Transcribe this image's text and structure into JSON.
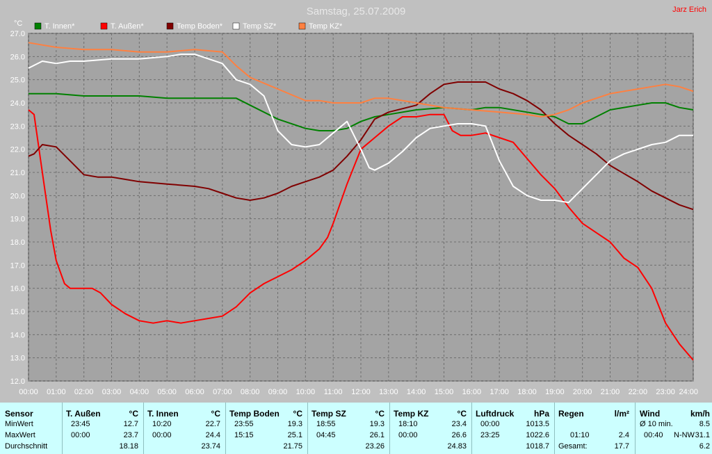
{
  "title": "Samstag, 25.07.2009",
  "author": "Jarz Erich",
  "chart_data": {
    "type": "line",
    "ylabel": "°C",
    "ylim": [
      12.0,
      27.0
    ],
    "yticks": [
      "12.0",
      "13.0",
      "14.0",
      "15.0",
      "16.0",
      "17.0",
      "18.0",
      "19.0",
      "20.0",
      "21.0",
      "22.0",
      "23.0",
      "24.0",
      "25.0",
      "26.0",
      "27.0"
    ],
    "xlim": [
      0,
      24
    ],
    "xticks": [
      "00:00",
      "01:00",
      "02:00",
      "03:00",
      "04:00",
      "05:00",
      "06:00",
      "07:00",
      "08:00",
      "09:00",
      "10:00",
      "11:00",
      "12:00",
      "13:00",
      "14:00",
      "15:00",
      "16:00",
      "17:00",
      "18:00",
      "19:00",
      "20:00",
      "21:00",
      "22:00",
      "23:00",
      "24:00"
    ],
    "grid": true,
    "legend_position": "top-left",
    "series": [
      {
        "name": "T. Innen*",
        "color": "#008000",
        "x": [
          0,
          1,
          2,
          3,
          4,
          5,
          6,
          7,
          7.5,
          8,
          9,
          10,
          10.5,
          11,
          11.5,
          12,
          12.5,
          13,
          14,
          15,
          16,
          16.5,
          17,
          18,
          18.5,
          19,
          19.5,
          20,
          20.5,
          21,
          22,
          22.5,
          23,
          23.5,
          24
        ],
        "y": [
          24.4,
          24.4,
          24.3,
          24.3,
          24.3,
          24.2,
          24.2,
          24.2,
          24.2,
          23.9,
          23.3,
          22.9,
          22.8,
          22.8,
          22.9,
          23.2,
          23.4,
          23.5,
          23.7,
          23.8,
          23.7,
          23.8,
          23.8,
          23.6,
          23.5,
          23.4,
          23.1,
          23.1,
          23.4,
          23.7,
          23.9,
          24.0,
          24.0,
          23.8,
          23.7
        ]
      },
      {
        "name": "T. Außen*",
        "color": "#ff0000",
        "x": [
          0,
          0.2,
          0.5,
          0.8,
          1,
          1.3,
          1.5,
          2,
          2.3,
          2.6,
          3,
          3.5,
          4,
          4.5,
          5,
          5.5,
          6,
          6.5,
          7,
          7.5,
          8,
          8.5,
          9,
          9.5,
          10,
          10.3,
          10.5,
          10.8,
          11,
          11.5,
          12,
          12.5,
          13,
          13.5,
          14,
          14.5,
          15,
          15.3,
          15.6,
          16,
          16.5,
          17,
          17.5,
          18,
          18.5,
          19,
          19.5,
          20,
          20.5,
          21,
          21.5,
          22,
          22.5,
          23,
          23.5,
          24
        ],
        "y": [
          23.7,
          23.5,
          21.0,
          18.5,
          17.2,
          16.2,
          16.0,
          16.0,
          16.0,
          15.8,
          15.3,
          14.9,
          14.6,
          14.5,
          14.6,
          14.5,
          14.6,
          14.7,
          14.8,
          15.2,
          15.8,
          16.2,
          16.5,
          16.8,
          17.2,
          17.5,
          17.7,
          18.2,
          18.8,
          20.5,
          22.0,
          22.5,
          23.0,
          23.4,
          23.4,
          23.5,
          23.5,
          22.8,
          22.6,
          22.6,
          22.7,
          22.5,
          22.3,
          21.6,
          20.9,
          20.3,
          19.5,
          18.8,
          18.4,
          18.0,
          17.3,
          16.9,
          16.0,
          14.5,
          13.6,
          12.9
        ]
      },
      {
        "name": "Temp Boden*",
        "color": "#800000",
        "x": [
          0,
          0.2,
          0.5,
          1,
          1.5,
          2,
          2.5,
          3,
          3.5,
          4,
          5,
          6,
          6.5,
          7,
          7.5,
          8,
          8.5,
          9,
          9.5,
          10,
          10.5,
          11,
          11.5,
          12,
          12.5,
          13,
          14,
          14.5,
          15,
          15.5,
          16,
          16.5,
          17,
          17.5,
          18,
          18.5,
          19,
          19.5,
          20,
          20.5,
          21,
          22,
          22.5,
          23,
          23.5,
          24
        ],
        "y": [
          21.7,
          21.8,
          22.2,
          22.1,
          21.5,
          20.9,
          20.8,
          20.8,
          20.7,
          20.6,
          20.5,
          20.4,
          20.3,
          20.1,
          19.9,
          19.8,
          19.9,
          20.1,
          20.4,
          20.6,
          20.8,
          21.1,
          21.7,
          22.4,
          23.3,
          23.6,
          23.9,
          24.4,
          24.8,
          24.9,
          24.9,
          24.9,
          24.6,
          24.4,
          24.1,
          23.7,
          23.1,
          22.6,
          22.2,
          21.8,
          21.3,
          20.6,
          20.2,
          19.9,
          19.6,
          19.4
        ]
      },
      {
        "name": "Temp SZ*",
        "color": "#ffffff",
        "x": [
          0,
          0.5,
          1,
          1.5,
          2,
          3,
          4,
          5,
          5.5,
          6,
          6.5,
          7,
          7.5,
          8,
          8.5,
          9,
          9.5,
          10,
          10.5,
          11,
          11.5,
          12,
          12.3,
          12.5,
          13,
          13.5,
          14,
          14.5,
          15,
          15.5,
          16,
          16.5,
          17,
          17.5,
          18,
          18.5,
          19,
          19.5,
          20,
          20.5,
          21,
          21.5,
          22,
          22.5,
          23,
          23.5,
          24
        ],
        "y": [
          25.5,
          25.8,
          25.7,
          25.8,
          25.8,
          25.9,
          25.9,
          26.0,
          26.1,
          26.1,
          25.9,
          25.7,
          25.0,
          24.8,
          24.3,
          22.8,
          22.2,
          22.1,
          22.2,
          22.7,
          23.2,
          22.0,
          21.2,
          21.1,
          21.4,
          21.9,
          22.5,
          22.9,
          23.0,
          23.1,
          23.1,
          23.0,
          21.5,
          20.4,
          20.0,
          19.8,
          19.8,
          19.7,
          20.3,
          20.9,
          21.5,
          21.8,
          22.0,
          22.2,
          22.3,
          22.6,
          22.6
        ]
      },
      {
        "name": "Temp KZ*",
        "color": "#ff8040",
        "x": [
          0,
          0.5,
          1,
          2,
          3,
          4,
          5,
          6,
          7,
          7.5,
          8,
          9,
          10,
          10.5,
          11,
          11.5,
          12,
          12.5,
          13,
          14,
          15,
          16,
          17,
          18,
          18.5,
          19,
          19.5,
          20,
          20.5,
          21,
          21.5,
          22,
          22.5,
          23,
          23.5,
          24
        ],
        "y": [
          26.6,
          26.5,
          26.4,
          26.3,
          26.3,
          26.2,
          26.2,
          26.3,
          26.2,
          25.6,
          25.1,
          24.6,
          24.1,
          24.1,
          24.0,
          24.0,
          24.0,
          24.2,
          24.2,
          24.0,
          23.8,
          23.7,
          23.6,
          23.5,
          23.4,
          23.5,
          23.7,
          24.0,
          24.2,
          24.4,
          24.5,
          24.6,
          24.7,
          24.8,
          24.7,
          24.5
        ]
      }
    ]
  },
  "stats": {
    "sensor": {
      "header": "Sensor",
      "min": "MinWert",
      "max": "MaxWert",
      "avg": "Durchschnitt"
    },
    "columns": [
      {
        "name": "T. Außen",
        "unit": "°C",
        "min_time": "23:45",
        "min_value": "12.7",
        "max_time": "00:00",
        "max_value": "23.7",
        "avg": "18.18"
      },
      {
        "name": "T. Innen",
        "unit": "°C",
        "min_time": "10:20",
        "min_value": "22.7",
        "max_time": "00:00",
        "max_value": "24.4",
        "avg": "23.74"
      },
      {
        "name": "Temp Boden",
        "unit": "°C",
        "min_time": "23:55",
        "min_value": "19.3",
        "max_time": "15:15",
        "max_value": "25.1",
        "avg": "21.75"
      },
      {
        "name": "Temp SZ",
        "unit": "°C",
        "min_time": "18:55",
        "min_value": "19.3",
        "max_time": "04:45",
        "max_value": "26.1",
        "avg": "23.26"
      },
      {
        "name": "Temp KZ",
        "unit": "°C",
        "min_time": "18:10",
        "min_value": "23.4",
        "max_time": "00:00",
        "max_value": "26.6",
        "avg": "24.83"
      },
      {
        "name": "Luftdruck",
        "unit": "hPa",
        "min_time": "00:00",
        "min_value": "1013.5",
        "max_time": "23:25",
        "max_value": "1022.6",
        "avg": "1018.7"
      }
    ],
    "regen": {
      "name": "Regen",
      "unit": "l/m²",
      "max_time": "01:10",
      "max_value": "2.4",
      "total_label": "Gesamt:",
      "total_value": "17.7"
    },
    "wind": {
      "name": "Wind",
      "unit": "km/h",
      "min_label": "Ø 10 min.",
      "min_value": "8.5",
      "max_time": "00:40",
      "max_dir": "N-NW",
      "max_value": "31.1",
      "avg": "6.2"
    }
  }
}
